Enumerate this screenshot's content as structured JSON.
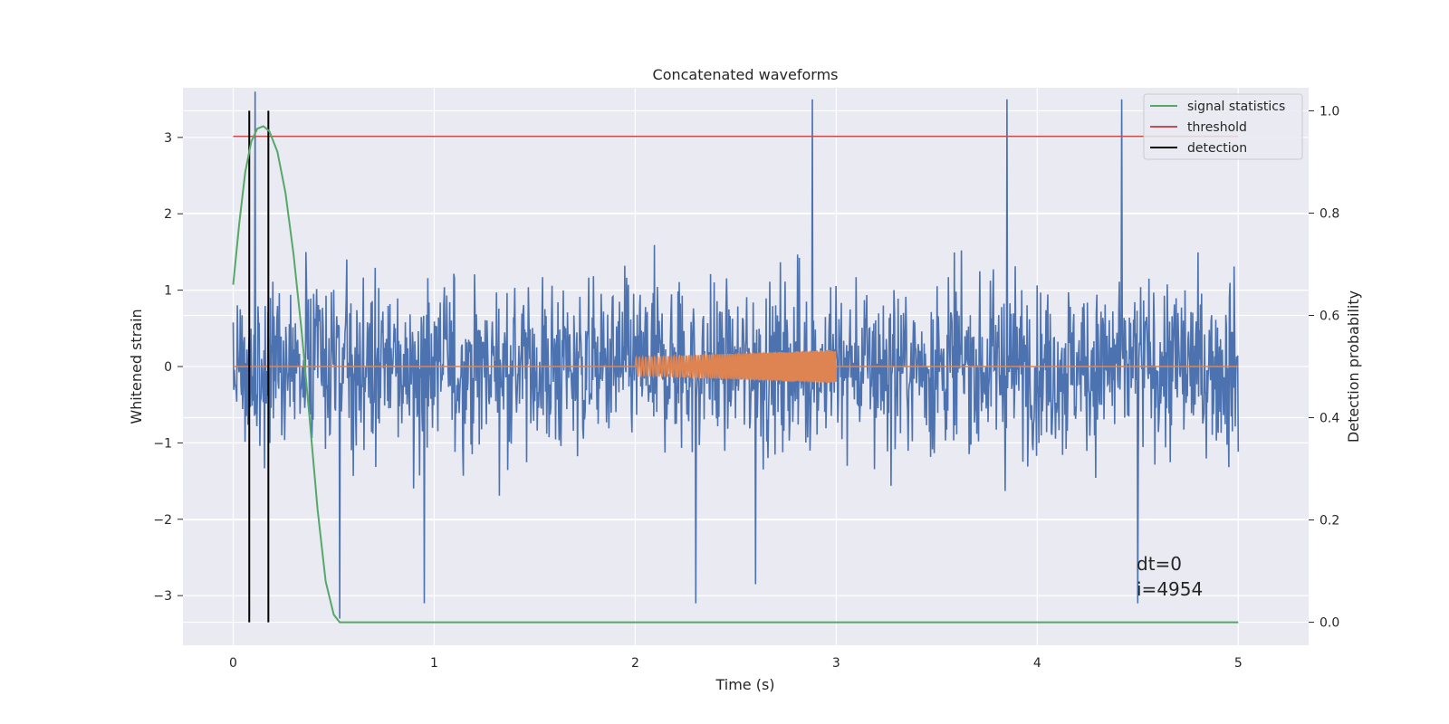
{
  "chart_data": {
    "type": "line",
    "title": "Concatenated waveforms",
    "xlabel": "Time (s)",
    "ylabel": "Whitened strain",
    "y2label": "Detection probability",
    "xlim": [
      -0.25,
      5.35
    ],
    "ylim": [
      -3.65,
      3.65
    ],
    "y2lim": [
      -0.045,
      1.045
    ],
    "xticks": [
      0,
      1,
      2,
      3,
      4,
      5
    ],
    "xtick_labels": [
      "0",
      "1",
      "2",
      "3",
      "4",
      "5"
    ],
    "yticks": [
      3,
      2,
      1,
      0,
      -1,
      -2,
      -3
    ],
    "ytick_labels": [
      "3",
      "2",
      "1",
      "0",
      "−1",
      "−2",
      "−3"
    ],
    "y2ticks": [
      1.0,
      0.8,
      0.6,
      0.4,
      0.2,
      0.0
    ],
    "y2tick_labels": [
      "1.0",
      "0.8",
      "0.6",
      "0.4",
      "0.2",
      "0.0"
    ],
    "grid": true,
    "legend_position": "top-right",
    "legend": [
      {
        "label": "signal statistics",
        "color": "#55a868"
      },
      {
        "label": "threshold",
        "color": "#c44e52"
      },
      {
        "label": "detection",
        "color": "#000000"
      }
    ],
    "series": [
      {
        "role": "whitened strain noise (approximate envelope)",
        "color": "#4c72b0",
        "axis": "left",
        "x_range": [
          0,
          5
        ],
        "typical_abs_max": 2.2,
        "spikes": [
          {
            "x": 0.11,
            "y": 3.6
          },
          {
            "x": 2.88,
            "y": 3.5
          },
          {
            "x": 3.85,
            "y": 3.5
          },
          {
            "x": 4.42,
            "y": 3.5
          },
          {
            "x": 0.53,
            "y": -3.3
          },
          {
            "x": 0.95,
            "y": -3.1
          },
          {
            "x": 2.3,
            "y": -3.1
          },
          {
            "x": 4.5,
            "y": -3.1
          },
          {
            "x": 2.6,
            "y": -2.85
          }
        ]
      },
      {
        "role": "injected chirp waveform",
        "color": "#dd8452",
        "axis": "left",
        "baseline": 0,
        "chirp_x_range": [
          2.0,
          3.0
        ],
        "amplitude_start": 0.12,
        "amplitude_end": 0.22
      },
      {
        "name": "signal statistics",
        "color": "#55a868",
        "axis": "right",
        "x": [
          0.0,
          0.03,
          0.06,
          0.09,
          0.12,
          0.15,
          0.18,
          0.22,
          0.26,
          0.3,
          0.34,
          0.38,
          0.42,
          0.46,
          0.5,
          0.53,
          0.6,
          1.0,
          2.0,
          3.0,
          4.0,
          5.0
        ],
        "y": [
          0.66,
          0.78,
          0.88,
          0.94,
          0.965,
          0.97,
          0.96,
          0.92,
          0.84,
          0.72,
          0.57,
          0.4,
          0.22,
          0.08,
          0.015,
          0.0,
          0.0,
          0.0,
          0.0,
          0.0,
          0.0,
          0.0
        ]
      },
      {
        "name": "threshold",
        "color": "#c44e52",
        "axis": "right",
        "value": 0.95,
        "x_range": [
          0,
          5
        ]
      },
      {
        "name": "detection",
        "color": "#000000",
        "axis": "right",
        "x": [
          0.08,
          0.175
        ],
        "y_range": [
          0.0,
          1.0
        ]
      }
    ],
    "annotations": [
      "dt=0",
      "i=4954"
    ]
  }
}
